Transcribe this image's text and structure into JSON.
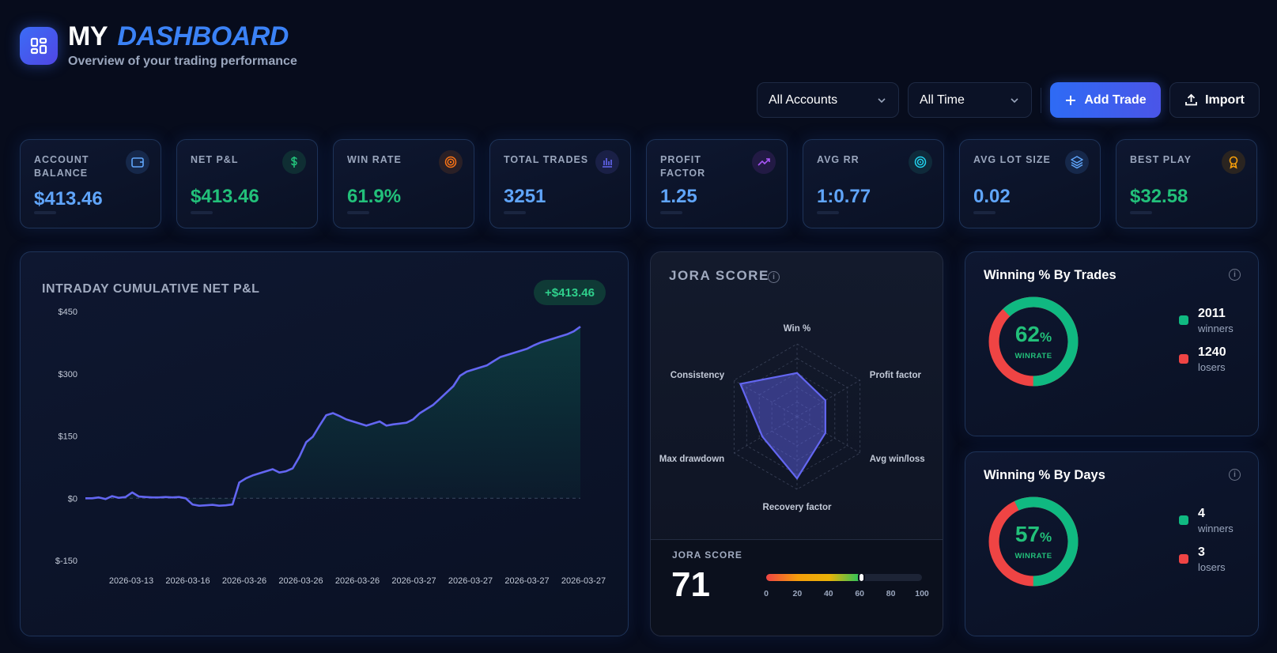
{
  "header": {
    "title_word1": "MY",
    "title_word2": "DASHBOARD",
    "subtitle": "Overview of your trading performance",
    "logo_icon": "dashboard-grid-icon"
  },
  "toolbar": {
    "account_filter": "All Accounts",
    "time_filter": "All Time",
    "add_trade_label": "Add Trade",
    "import_label": "Import"
  },
  "stats": [
    {
      "label": "ACCOUNT BALANCE",
      "value": "$413.46",
      "color": "#60a5fa",
      "icon": "wallet-icon",
      "icon_color": "#60a5fa",
      "icon_bg": "#16284a"
    },
    {
      "label": "NET P&L",
      "value": "$413.46",
      "color": "#22c07a",
      "icon": "dollar-icon",
      "icon_color": "#22c07a",
      "icon_bg": "#0f2e33"
    },
    {
      "label": "WIN RATE",
      "value": "61.9%",
      "color": "#22c07a",
      "icon": "target-icon",
      "icon_color": "#f97316",
      "icon_bg": "#2a2026"
    },
    {
      "label": "TOTAL TRADES",
      "value": "3251",
      "color": "#60a5fa",
      "icon": "bar-chart-icon",
      "icon_color": "#6366f1",
      "icon_bg": "#1a2046"
    },
    {
      "label": "PROFIT FACTOR",
      "value": "1.25",
      "color": "#60a5fa",
      "icon": "trending-up-icon",
      "icon_color": "#a855f7",
      "icon_bg": "#221a44"
    },
    {
      "label": "AVG RR",
      "value": "1:0.77",
      "color": "#60a5fa",
      "icon": "bullseye-icon",
      "icon_color": "#22d3ee",
      "icon_bg": "#0f2a3a"
    },
    {
      "label": "AVG LOT SIZE",
      "value": "0.02",
      "color": "#60a5fa",
      "icon": "layers-icon",
      "icon_color": "#60a5fa",
      "icon_bg": "#16284a"
    },
    {
      "label": "BEST PLAY",
      "value": "$32.58",
      "color": "#22c07a",
      "icon": "award-icon",
      "icon_color": "#f59e0b",
      "icon_bg": "#2a2420"
    }
  ],
  "pnl_chart": {
    "title": "INTRADAY CUMULATIVE NET P&L",
    "badge": "+$413.46"
  },
  "chart_data": {
    "type": "area",
    "title": "INTRADAY CUMULATIVE NET P&L",
    "ylim": [
      -150,
      450
    ],
    "yticks": [
      "$450",
      "$300",
      "$150",
      "$0",
      "$-150"
    ],
    "ytick_values": [
      450,
      300,
      150,
      0,
      -150
    ],
    "xticks": [
      "2026-03-13",
      "2026-03-16",
      "2026-03-26",
      "2026-03-26",
      "2026-03-26",
      "2026-03-27",
      "2026-03-27",
      "2026-03-27",
      "2026-03-27"
    ],
    "series": [
      {
        "color": "#6366f1",
        "values": [
          0,
          0,
          2,
          -2,
          5,
          1,
          3,
          14,
          4,
          3,
          2,
          2,
          3,
          2,
          3,
          0,
          -15,
          -18,
          -17,
          -16,
          -18,
          -17,
          -15,
          38,
          48,
          55,
          60,
          65,
          70,
          62,
          65,
          72,
          100,
          135,
          148,
          175,
          200,
          205,
          198,
          190,
          185,
          180,
          175,
          180,
          185,
          175,
          178,
          180,
          182,
          190,
          205,
          215,
          225,
          240,
          255,
          270,
          295,
          305,
          310,
          315,
          320,
          330,
          340,
          345,
          350,
          355,
          360,
          368,
          375,
          380,
          385,
          390,
          395,
          402,
          413.46
        ]
      }
    ],
    "grid": false
  },
  "jora": {
    "title": "JORA SCORE",
    "axes": [
      "Win %",
      "Profit factor",
      "Avg win/loss",
      "Recovery factor",
      "Max drawdown",
      "Consistency"
    ],
    "values": [
      60,
      45,
      45,
      85,
      55,
      90
    ],
    "score_label": "JORA SCORE",
    "score": "71",
    "score_value": 71,
    "gauge_ticks": [
      "0",
      "20",
      "40",
      "60",
      "80",
      "100"
    ]
  },
  "win_trades": {
    "title": "Winning % By Trades",
    "pct": "62",
    "pct_value": 62,
    "sub": "WINRATE",
    "winners": "2011",
    "winners_label": "winners",
    "losers": "1240",
    "losers_label": "losers"
  },
  "win_days": {
    "title": "Winning % By Days",
    "pct": "57",
    "pct_value": 57,
    "sub": "WINRATE",
    "winners": "4",
    "winners_label": "winners",
    "losers": "3",
    "losers_label": "losers"
  },
  "colors": {
    "green": "#10b981",
    "red": "#ef4444",
    "accent": "#3b82f6"
  }
}
